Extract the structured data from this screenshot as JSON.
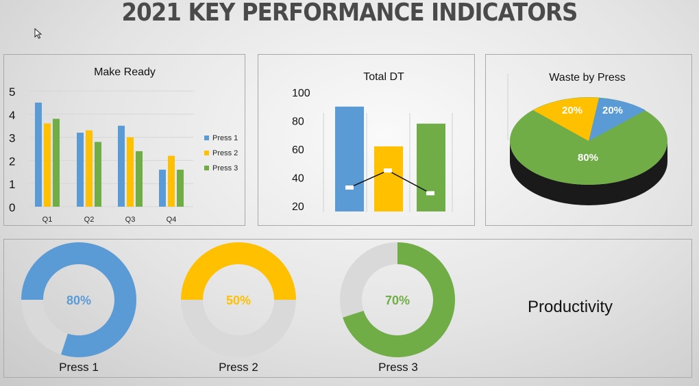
{
  "title": "2021  KEY PERFORMANCE INDICATORS",
  "colors": {
    "press1": "#5b9bd5",
    "press2": "#ffc000",
    "press3": "#70ad47",
    "track": "#d9d9d9"
  },
  "chart_data": [
    {
      "type": "bar",
      "title": "Make Ready",
      "categories": [
        "Q1",
        "Q2",
        "Q3",
        "Q4"
      ],
      "series": [
        {
          "name": "Press 1",
          "values": [
            4.5,
            3.2,
            3.5,
            1.6
          ]
        },
        {
          "name": "Press 2",
          "values": [
            3.6,
            3.3,
            3.0,
            2.2
          ]
        },
        {
          "name": "Press 3",
          "values": [
            3.8,
            2.8,
            2.4,
            1.6
          ]
        }
      ],
      "ylim": [
        0,
        5
      ],
      "yticks": [
        "0",
        "1",
        "2",
        "3",
        "4",
        "5"
      ],
      "legend": "right",
      "grid": true
    },
    {
      "type": "bar",
      "title": "Total DT",
      "bars": [
        90,
        62,
        78
      ],
      "line": [
        33,
        45,
        29
      ],
      "ylim": [
        20,
        100
      ],
      "yticks": [
        "20",
        "40",
        "60",
        "80",
        "100"
      ],
      "legend": "none"
    },
    {
      "type": "pie",
      "title": "Waste by Press",
      "labels": [
        "20%",
        "20%",
        "80%"
      ]
    },
    {
      "type": "pie",
      "subtype": "doughnut",
      "gauges": [
        {
          "label": "Press 1",
          "value": 80,
          "value_label": "80%"
        },
        {
          "label": "Press 2",
          "value": 50,
          "value_label": "50%"
        },
        {
          "label": "Press 3",
          "value": 70,
          "value_label": "70%"
        }
      ],
      "title": "Productivity"
    }
  ]
}
